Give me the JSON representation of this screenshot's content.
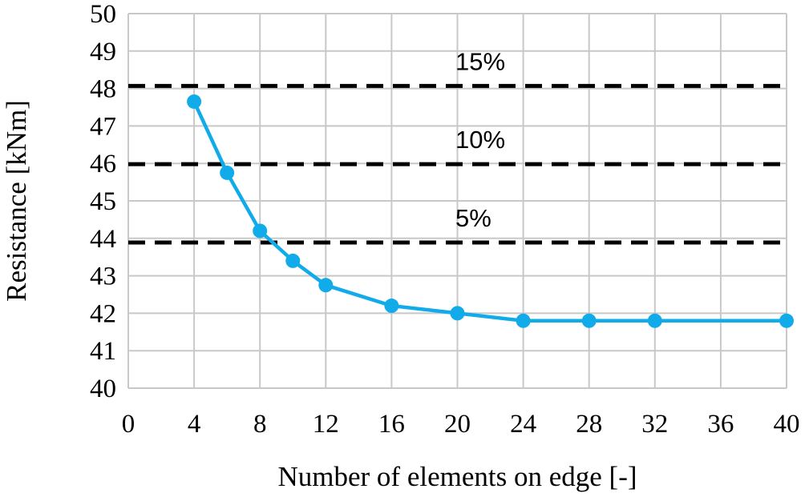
{
  "chart_data": {
    "type": "line",
    "xlabel": "Number of elements on edge [-]",
    "ylabel": "Resistance [kNm]",
    "xlim": [
      0,
      40
    ],
    "ylim": [
      40,
      50
    ],
    "x_ticks": [
      0,
      4,
      8,
      12,
      16,
      20,
      24,
      28,
      32,
      36,
      40
    ],
    "y_ticks": [
      40,
      41,
      42,
      43,
      44,
      45,
      46,
      47,
      48,
      49,
      50
    ],
    "grid": true,
    "series": [
      {
        "x": [
          4,
          6,
          8,
          10,
          12,
          16,
          20,
          24,
          28,
          32,
          40
        ],
        "y": [
          47.65,
          45.75,
          44.2,
          43.4,
          42.75,
          42.2,
          42.0,
          41.8,
          41.8,
          41.8,
          41.8
        ],
        "color": "#12ABEA",
        "marker": "circle"
      }
    ],
    "reference_lines": [
      {
        "label": "15%",
        "y": 48.07,
        "style": "dashed",
        "color": "#000000"
      },
      {
        "label": "10%",
        "y": 45.98,
        "style": "dashed",
        "color": "#000000"
      },
      {
        "label": "5%",
        "y": 43.89,
        "style": "dashed",
        "color": "#000000"
      }
    ],
    "colors": {
      "grid": "#C8C8C8",
      "series": "#12ABEA",
      "reference": "#000000"
    }
  }
}
